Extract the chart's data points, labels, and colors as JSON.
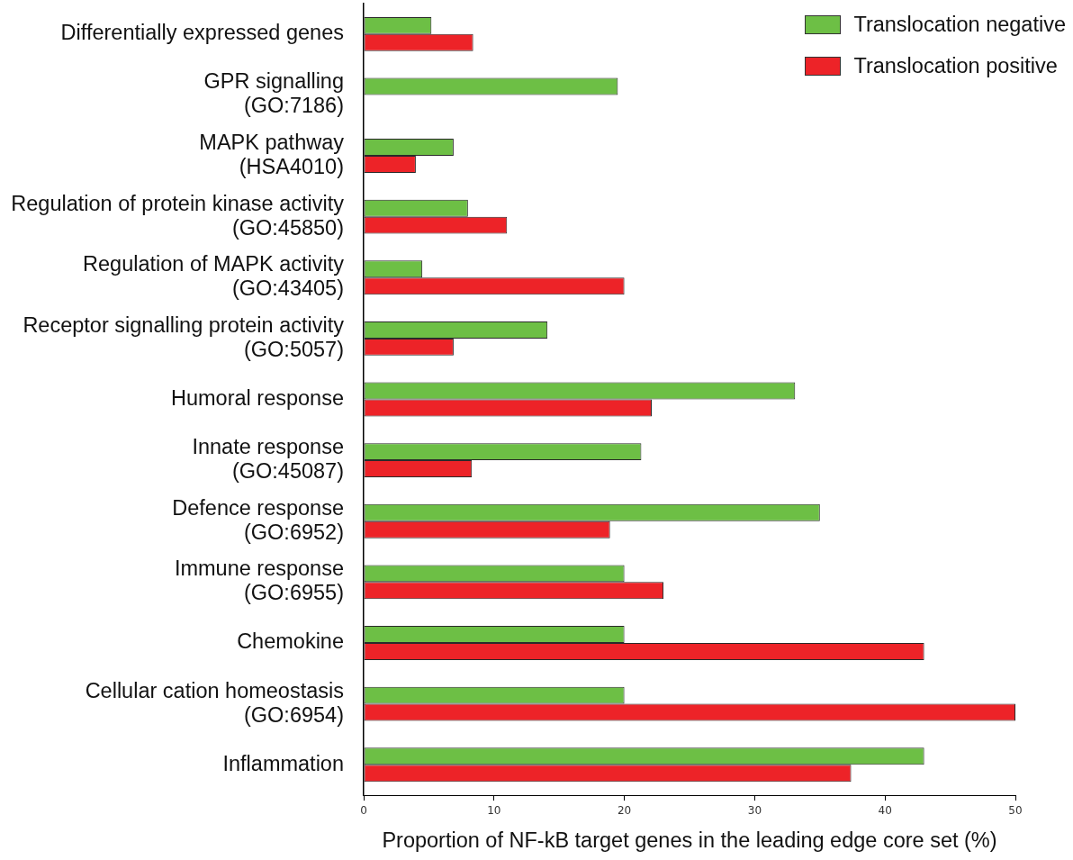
{
  "chart_data": {
    "type": "bar",
    "orientation": "horizontal",
    "xlabel": "Proportion of NF-kB target genes in the leading edge core set (%)",
    "categories": [
      "Differentially expressed genes",
      "GPR signalling\n(GO:7186)",
      "MAPK pathway\n(HSA4010)",
      "Regulation of protein kinase activity\n(GO:45850)",
      "Regulation of MAPK activity\n(GO:43405)",
      "Receptor signalling protein activity\n(GO:5057)",
      "Humoral response",
      "Innate response\n(GO:45087)",
      "Defence response\n(GO:6952)",
      "Immune response\n(GO:6955)",
      "Chemokine",
      "Cellular cation homeostasis\n(GO:6954)",
      "Inflammation"
    ],
    "series": [
      {
        "name": "Translocation negative",
        "color": "#6dbf45",
        "values": [
          5.2,
          19.5,
          6.9,
          8.0,
          4.5,
          14.1,
          33.1,
          21.3,
          35.0,
          20.0,
          20.0,
          20.0,
          43.0
        ]
      },
      {
        "name": "Translocation positive",
        "color": "#ed2328",
        "values": [
          8.4,
          0,
          4.0,
          11.0,
          20.0,
          6.9,
          22.1,
          8.3,
          18.9,
          23.0,
          43.0,
          50.0,
          37.4
        ]
      }
    ],
    "xlim": [
      0,
      50
    ],
    "xticks": [
      0,
      10,
      20,
      30,
      40,
      50
    ],
    "legend": "top right"
  }
}
